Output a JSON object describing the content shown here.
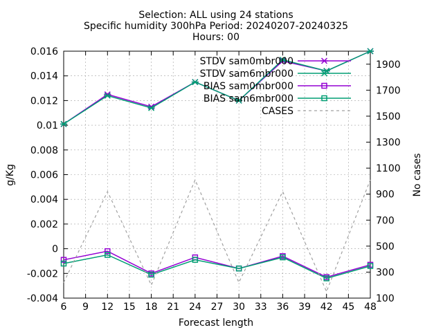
{
  "chart_data": {
    "type": "line",
    "title_lines": [
      "Selection: ALL using    24 stations",
      "Specific humidity 300hPa   Period: 20240207-20240325",
      "Hours: 00"
    ],
    "xlabel": "Forecast length",
    "ylabel": "g/Kg",
    "y2label": "No cases",
    "x": [
      6,
      12,
      18,
      24,
      30,
      36,
      42,
      48
    ],
    "xticks": [
      "6",
      "9",
      "12",
      "15",
      "18",
      "21",
      "24",
      "27",
      "30",
      "33",
      "36",
      "39",
      "42",
      "45",
      "48"
    ],
    "xlim": [
      6,
      48
    ],
    "ylim": [
      -0.004,
      0.016
    ],
    "yticks": [
      "-0.004",
      "-0.002",
      "0",
      "0.002",
      "0.004",
      "0.006",
      "0.008",
      "0.01",
      "0.012",
      "0.014",
      "0.016"
    ],
    "y2lim": [
      100,
      2000
    ],
    "y2ticks": [
      "100",
      "300",
      "500",
      "700",
      "900",
      "1100",
      "1300",
      "1500",
      "1700",
      "1900"
    ],
    "grid": true,
    "legend_position": "top-right",
    "series": [
      {
        "name": "STDV sam0mbr000",
        "axis": "y",
        "color": "#9400d3",
        "marker": "x",
        "dash": false,
        "values": [
          0.0101,
          0.0125,
          0.0115,
          0.0135,
          0.012,
          0.0152,
          0.0144,
          0.016
        ]
      },
      {
        "name": "STDV sam6mbr000",
        "axis": "y",
        "color": "#009e73",
        "marker": "x",
        "dash": false,
        "values": [
          0.0101,
          0.0124,
          0.0114,
          0.0135,
          0.012,
          0.0153,
          0.0144,
          0.016
        ]
      },
      {
        "name": "BIAS sam0mbr000",
        "axis": "y",
        "color": "#9400d3",
        "marker": "square",
        "dash": false,
        "values": [
          -0.0009,
          -0.0002,
          -0.002,
          -0.0007,
          -0.0016,
          -0.0006,
          -0.0023,
          -0.0013
        ]
      },
      {
        "name": "BIAS sam6mbr000",
        "axis": "y",
        "color": "#009e73",
        "marker": "square",
        "dash": false,
        "values": [
          -0.0012,
          -0.0005,
          -0.0021,
          -0.0009,
          -0.0016,
          -0.0007,
          -0.0024,
          -0.0014
        ]
      },
      {
        "name": "CASES",
        "axis": "y2",
        "color": "#a0a0a0",
        "marker": "none",
        "dash": true,
        "values": [
          220,
          920,
          200,
          1010,
          220,
          920,
          150,
          1010
        ]
      }
    ]
  }
}
